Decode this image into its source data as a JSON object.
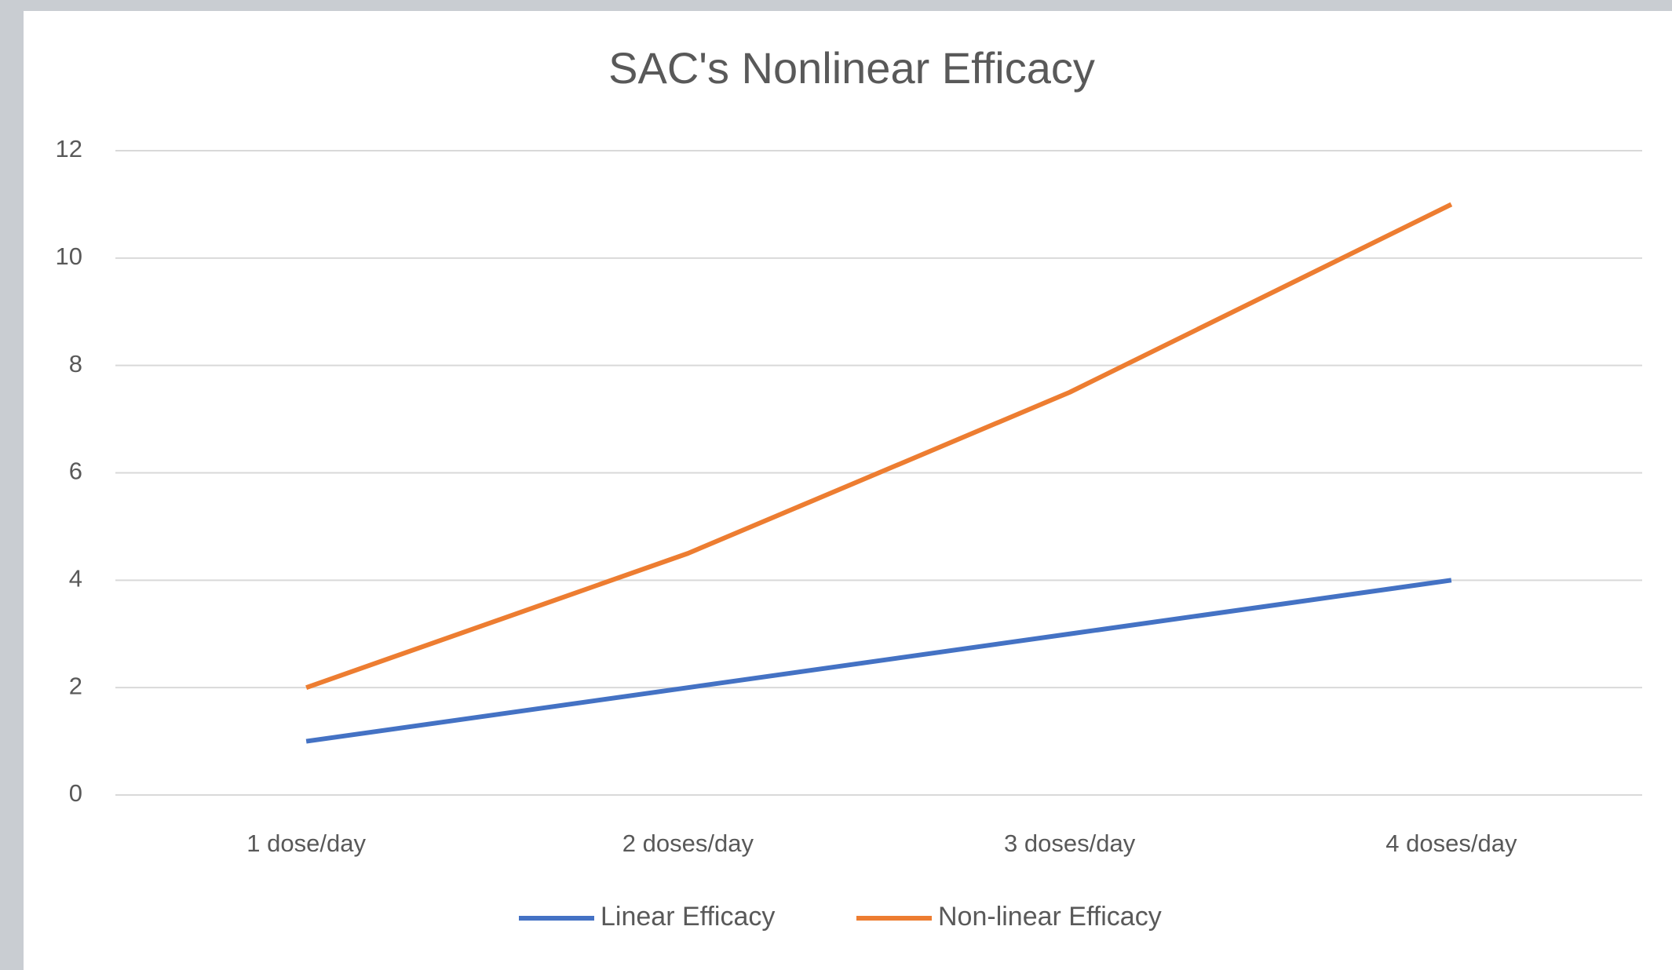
{
  "chart_data": {
    "type": "line",
    "title": "SAC's Nonlinear Efficacy",
    "categories": [
      "1 dose/day",
      "2 doses/day",
      "3 doses/day",
      "4 doses/day"
    ],
    "series": [
      {
        "name": "Linear Efficacy",
        "color": "#4472c4",
        "values": [
          1,
          2,
          3,
          4
        ]
      },
      {
        "name": "Non-linear Efficacy",
        "color": "#ed7d31",
        "values": [
          2,
          4.5,
          7.5,
          11
        ]
      }
    ],
    "ylim": [
      0,
      12
    ],
    "yticks": [
      0,
      2,
      4,
      6,
      8,
      10,
      12
    ],
    "grid": true,
    "legend": "bottom"
  }
}
